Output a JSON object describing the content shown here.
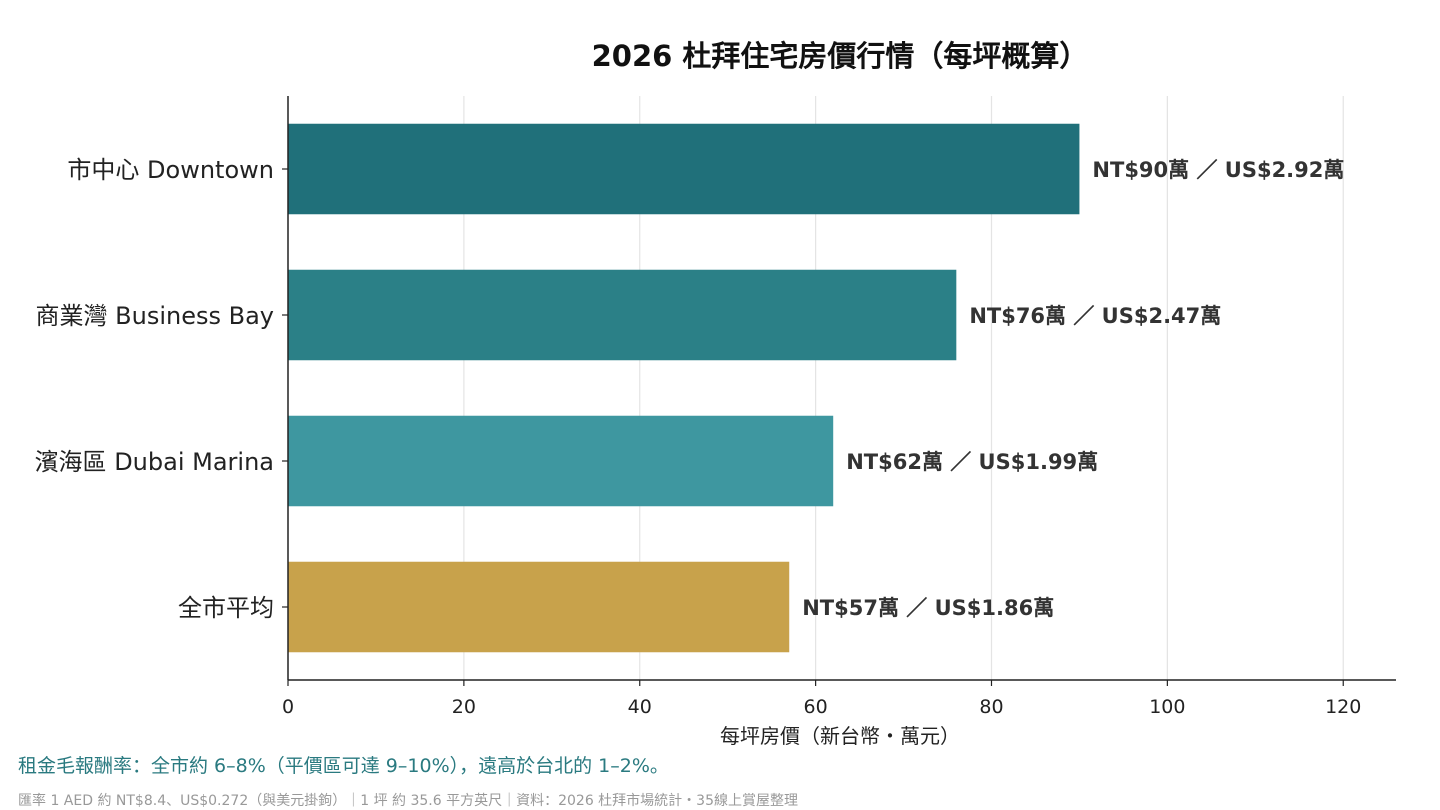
{
  "chart_data": {
    "type": "bar",
    "orientation": "horizontal",
    "title": "2026 杜拜住宅房價行情（每坪概算）",
    "xlabel": "每坪房價（新台幣・萬元）",
    "ylabel": "",
    "xlim": [
      0,
      126
    ],
    "xticks": [
      0,
      20,
      40,
      60,
      80,
      100,
      120
    ],
    "grid": "vertical",
    "categories": [
      "市中心 Downtown",
      "商業灣 Business Bay",
      "濱海區 Dubai Marina",
      "全市平均"
    ],
    "values": [
      90,
      76,
      62,
      57
    ],
    "data_labels": [
      "NT$90萬 ／ US$2.92萬",
      "NT$76萬 ／ US$2.47萬",
      "NT$62萬 ／ US$1.99萬",
      "NT$57萬 ／ US$1.86萬"
    ],
    "colors": [
      "#20707a",
      "#2b8087",
      "#3e97a0",
      "#c8a24b"
    ]
  },
  "note": "租金毛報酬率：全市約 6–8%（平價區可達 9–10%），遠高於台北的 1–2%。",
  "source": "匯率 1 AED 約 NT$8.4、US$0.272（與美元掛鉤）｜1 坪 約 35.6 平方英尺｜資料：2026 杜拜市場統計・35線上賞屋整理"
}
